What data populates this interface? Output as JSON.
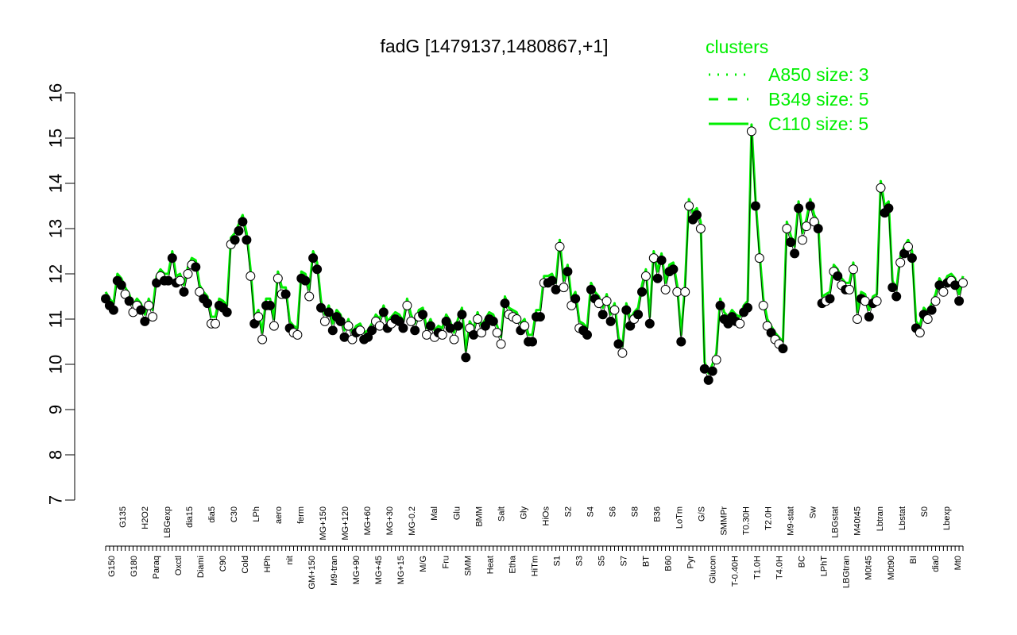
{
  "chart_data": {
    "type": "line",
    "title": "fadG [1479137,1480867,+1]",
    "xlabel": "",
    "ylabel": "",
    "ylim": [
      7,
      16
    ],
    "yticks": [
      7,
      8,
      9,
      10,
      11,
      12,
      13,
      14,
      15,
      16
    ],
    "grid": false,
    "legend": {
      "placement": "top-right",
      "title": "clusters",
      "color": "#00ee00",
      "entries": [
        {
          "label": "A850 size: 3",
          "style": "dotted"
        },
        {
          "label": "B349 size: 5",
          "style": "dashed"
        },
        {
          "label": "C110 size: 5",
          "style": "solid"
        }
      ]
    },
    "colors": {
      "line": "#00ee00",
      "open_point": "#ffffff",
      "filled_point": "#000000",
      "connector": "#000000"
    },
    "x_tick_labels": [
      "G150",
      "G135",
      "G180",
      "H2O2",
      "Paraq",
      "LBGexp",
      "Oxctl",
      "dia15",
      "Diami",
      "dia5",
      "C90",
      "C30",
      "Cold",
      "LPh",
      "HPh",
      "aero",
      "nit",
      "ferm",
      "GM+150",
      "MG+150",
      "M9-tran",
      "MG+120",
      "MG+90",
      "MG+60",
      "MG+45",
      "MG+30",
      "MG+15",
      "MG-0.2",
      "M/G",
      "Mal",
      "Fru",
      "Glu",
      "SMM",
      "BMM",
      "Heat",
      "Salt",
      "Etha",
      "Gly",
      "HiTm",
      "HiOs",
      "S1",
      "S2",
      "S3",
      "S4",
      "S5",
      "S6",
      "S7",
      "S8",
      "BT",
      "B36",
      "B60",
      "LoTm",
      "Pyr",
      "G/S",
      "Glucon",
      "SMMPr",
      "T-0.40H",
      "T0.30H",
      "T1.0H",
      "T2.0H",
      "T4.0H",
      "M9-stat",
      "BC",
      "Sw",
      "LPhT",
      "LBGstat",
      "LBGtran",
      "M40t45",
      "M0t45",
      "Lbtran",
      "M0t90",
      "Lbstat",
      "BI",
      "S0",
      "dia0",
      "Lbexp",
      "Mt0"
    ],
    "y_values": [
      11.45,
      11.3,
      11.2,
      11.85,
      11.75,
      11.55,
      11.4,
      11.15,
      11.3,
      11.2,
      10.95,
      11.3,
      11.05,
      11.8,
      11.95,
      11.85,
      11.85,
      12.35,
      11.8,
      11.85,
      11.6,
      12.0,
      12.2,
      12.15,
      11.6,
      11.45,
      11.35,
      10.9,
      10.9,
      11.3,
      11.25,
      11.15,
      12.65,
      12.75,
      12.95,
      13.15,
      12.75,
      11.95,
      10.9,
      11.05,
      10.55,
      11.3,
      11.3,
      10.85,
      11.9,
      11.55,
      11.55,
      10.8,
      10.7,
      10.65,
      11.9,
      11.85,
      11.5,
      12.35,
      12.1,
      11.25,
      10.95,
      11.15,
      10.75,
      11.05,
      10.95,
      10.6,
      10.85,
      10.55,
      10.7,
      10.75,
      10.55,
      10.6,
      10.75,
      10.95,
      10.85,
      11.15,
      10.8,
      10.9,
      11.0,
      10.95,
      10.8,
      11.3,
      10.95,
      10.75,
      11.05,
      11.1,
      10.65,
      10.85,
      10.6,
      10.7,
      10.65,
      10.95,
      10.8,
      10.55,
      10.85,
      11.1,
      10.15,
      10.8,
      10.65,
      11.0,
      10.7,
      10.85,
      11.0,
      10.95,
      10.7,
      10.45,
      11.35,
      11.1,
      11.05,
      11.0,
      10.75,
      10.85,
      10.5,
      10.5,
      11.05,
      11.05,
      11.8,
      11.8,
      11.85,
      11.65,
      12.6,
      11.7,
      12.05,
      11.3,
      11.45,
      10.8,
      10.75,
      10.65,
      11.65,
      11.45,
      11.35,
      11.1,
      11.4,
      10.95,
      11.2,
      10.45,
      10.25,
      11.2,
      10.85,
      11.0,
      11.1,
      11.6,
      11.95,
      10.9,
      12.35,
      11.9,
      12.3,
      11.65,
      12.05,
      12.1,
      11.6,
      10.5,
      11.6,
      13.5,
      13.2,
      13.3,
      13.0,
      9.9,
      9.65,
      9.85,
      10.1,
      11.3,
      11.0,
      10.9,
      11.05,
      10.95,
      10.9,
      11.15,
      11.25,
      15.15,
      13.5,
      12.35,
      11.3,
      10.85,
      10.7,
      10.55,
      10.45,
      10.35,
      13.0,
      12.7,
      12.45,
      13.45,
      12.75,
      13.05,
      13.5,
      13.15,
      13.0,
      11.35,
      11.4,
      11.45,
      12.05,
      11.95,
      11.75,
      11.65,
      11.65,
      12.1,
      11.0,
      11.45,
      11.4,
      11.05,
      11.35,
      11.4,
      13.9,
      13.35,
      13.45,
      11.7,
      11.5,
      12.25,
      12.45,
      12.6,
      12.35,
      10.8,
      10.7,
      11.1,
      11.0,
      11.2,
      11.4,
      11.75,
      11.6,
      11.8,
      11.85,
      11.75,
      11.4,
      11.8
    ],
    "filled": [
      1,
      1,
      1,
      1,
      1,
      0,
      1,
      0,
      0,
      1,
      1,
      0,
      0,
      1,
      0,
      1,
      1,
      1,
      1,
      0,
      1,
      0,
      0,
      1,
      0,
      1,
      1,
      0,
      0,
      1,
      1,
      1,
      0,
      1,
      1,
      1,
      1,
      0,
      1,
      0,
      0,
      1,
      1,
      0,
      0,
      0,
      1,
      1,
      0,
      0,
      1,
      1,
      0,
      1,
      1,
      1,
      0,
      1,
      1,
      1,
      1,
      1,
      0,
      0,
      1,
      0,
      1,
      1,
      1,
      0,
      0,
      1,
      1,
      0,
      1,
      1,
      1,
      0,
      0,
      1,
      0,
      1,
      0,
      1,
      0,
      1,
      0,
      1,
      1,
      0,
      1,
      1,
      1,
      0,
      1,
      0,
      0,
      1,
      1,
      1,
      0,
      0,
      1,
      0,
      0,
      0,
      1,
      0,
      1,
      1,
      1,
      1,
      0,
      1,
      1,
      1,
      0,
      0,
      1,
      0,
      1,
      0,
      1,
      1,
      1,
      1,
      0,
      1,
      0,
      1,
      0,
      1,
      0,
      1,
      1,
      0,
      1,
      1,
      0,
      1,
      0,
      1,
      1,
      0,
      1,
      1,
      0,
      1,
      0,
      0,
      1,
      1,
      0,
      1,
      1,
      1,
      0,
      1,
      1,
      1,
      1,
      1,
      0,
      1,
      1,
      0,
      1,
      0,
      0,
      0,
      1,
      0,
      0,
      1,
      0,
      1,
      1,
      1,
      0,
      0,
      1,
      0,
      1,
      1,
      0,
      1,
      0,
      1,
      0,
      1,
      0,
      0,
      0,
      1,
      0,
      1,
      1,
      0,
      0,
      1,
      1,
      1,
      1,
      0,
      1,
      0,
      1,
      1,
      0,
      1,
      0,
      1,
      0,
      1,
      0,
      1,
      0,
      1,
      1,
      0,
      1,
      1,
      0,
      1,
      1,
      1,
      1,
      1,
      0,
      1,
      0,
      0,
      1,
      0,
      1,
      1,
      1,
      1
    ]
  }
}
